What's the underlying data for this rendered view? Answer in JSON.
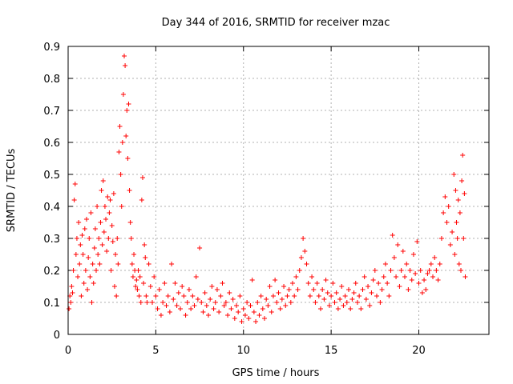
{
  "chart_data": {
    "type": "scatter",
    "title": "Day 344 of 2016, SRMTID for receiver mzac",
    "xlabel": "GPS time / hours",
    "ylabel": "SRMTID / TECUs",
    "xlim": [
      0,
      24
    ],
    "ylim": [
      0,
      0.9
    ],
    "xticks": [
      0,
      5,
      10,
      15,
      20
    ],
    "xtick_labels": [
      "0",
      "5",
      "10",
      "15",
      "20"
    ],
    "yticks": [
      0,
      0.1,
      0.2,
      0.3,
      0.4,
      0.5,
      0.6,
      0.7,
      0.8,
      0.9
    ],
    "ytick_labels": [
      "0",
      "0.1",
      "0.2",
      "0.3",
      "0.4",
      "0.5",
      "0.6",
      "0.7",
      "0.8",
      "0.9"
    ],
    "grid": true,
    "marker": "+",
    "color": "#ff0000",
    "series": [
      {
        "name": "SRMTID",
        "points": [
          [
            0.05,
            0.08
          ],
          [
            0.1,
            0.12
          ],
          [
            0.15,
            0.1
          ],
          [
            0.2,
            0.15
          ],
          [
            0.25,
            0.13
          ],
          [
            0.3,
            0.2
          ],
          [
            0.35,
            0.42
          ],
          [
            0.4,
            0.47
          ],
          [
            0.45,
            0.25
          ],
          [
            0.5,
            0.3
          ],
          [
            0.55,
            0.18
          ],
          [
            0.6,
            0.35
          ],
          [
            0.65,
            0.22
          ],
          [
            0.7,
            0.28
          ],
          [
            0.75,
            0.12
          ],
          [
            0.8,
            0.31
          ],
          [
            0.85,
            0.25
          ],
          [
            0.9,
            0.16
          ],
          [
            0.95,
            0.33
          ],
          [
            1.0,
            0.2
          ],
          [
            1.05,
            0.36
          ],
          [
            1.1,
            0.14
          ],
          [
            1.15,
            0.24
          ],
          [
            1.2,
            0.3
          ],
          [
            1.25,
            0.18
          ],
          [
            1.3,
            0.38
          ],
          [
            1.35,
            0.1
          ],
          [
            1.4,
            0.22
          ],
          [
            1.45,
            0.16
          ],
          [
            1.5,
            0.27
          ],
          [
            1.55,
            0.33
          ],
          [
            1.6,
            0.2
          ],
          [
            1.65,
            0.4
          ],
          [
            1.7,
            0.25
          ],
          [
            1.75,
            0.3
          ],
          [
            1.8,
            0.22
          ],
          [
            1.85,
            0.35
          ],
          [
            1.9,
            0.45
          ],
          [
            1.95,
            0.28
          ],
          [
            2.0,
            0.48
          ],
          [
            2.05,
            0.32
          ],
          [
            2.1,
            0.4
          ],
          [
            2.15,
            0.36
          ],
          [
            2.2,
            0.26
          ],
          [
            2.25,
            0.43
          ],
          [
            2.3,
            0.3
          ],
          [
            2.35,
            0.38
          ],
          [
            2.4,
            0.42
          ],
          [
            2.45,
            0.2
          ],
          [
            2.5,
            0.34
          ],
          [
            2.55,
            0.29
          ],
          [
            2.6,
            0.44
          ],
          [
            2.65,
            0.15
          ],
          [
            2.7,
            0.25
          ],
          [
            2.75,
            0.12
          ],
          [
            2.8,
            0.3
          ],
          [
            2.85,
            0.22
          ],
          [
            2.9,
            0.57
          ],
          [
            2.95,
            0.65
          ],
          [
            3.0,
            0.5
          ],
          [
            3.05,
            0.4
          ],
          [
            3.1,
            0.6
          ],
          [
            3.15,
            0.75
          ],
          [
            3.2,
            0.87
          ],
          [
            3.25,
            0.84
          ],
          [
            3.3,
            0.62
          ],
          [
            3.35,
            0.7
          ],
          [
            3.4,
            0.55
          ],
          [
            3.45,
            0.72
          ],
          [
            3.5,
            0.45
          ],
          [
            3.55,
            0.35
          ],
          [
            3.6,
            0.3
          ],
          [
            3.65,
            0.22
          ],
          [
            3.7,
            0.18
          ],
          [
            3.75,
            0.25
          ],
          [
            3.8,
            0.2
          ],
          [
            3.85,
            0.15
          ],
          [
            3.9,
            0.17
          ],
          [
            3.95,
            0.14
          ],
          [
            4.0,
            0.2
          ],
          [
            4.05,
            0.12
          ],
          [
            4.1,
            0.18
          ],
          [
            4.15,
            0.1
          ],
          [
            4.2,
            0.42
          ],
          [
            4.25,
            0.49
          ],
          [
            4.3,
            0.16
          ],
          [
            4.35,
            0.28
          ],
          [
            4.4,
            0.24
          ],
          [
            4.45,
            0.12
          ],
          [
            4.5,
            0.1
          ],
          [
            4.6,
            0.22
          ],
          [
            4.7,
            0.15
          ],
          [
            4.8,
            0.1
          ],
          [
            4.9,
            0.18
          ],
          [
            5.0,
            0.12
          ],
          [
            5.1,
            0.08
          ],
          [
            5.2,
            0.14
          ],
          [
            5.3,
            0.06
          ],
          [
            5.4,
            0.1
          ],
          [
            5.5,
            0.16
          ],
          [
            5.6,
            0.09
          ],
          [
            5.7,
            0.12
          ],
          [
            5.8,
            0.07
          ],
          [
            5.9,
            0.22
          ],
          [
            6.0,
            0.11
          ],
          [
            6.1,
            0.16
          ],
          [
            6.2,
            0.09
          ],
          [
            6.3,
            0.13
          ],
          [
            6.4,
            0.08
          ],
          [
            6.5,
            0.15
          ],
          [
            6.6,
            0.12
          ],
          [
            6.7,
            0.06
          ],
          [
            6.8,
            0.1
          ],
          [
            6.9,
            0.14
          ],
          [
            7.0,
            0.08
          ],
          [
            7.1,
            0.12
          ],
          [
            7.2,
            0.09
          ],
          [
            7.3,
            0.18
          ],
          [
            7.4,
            0.11
          ],
          [
            7.5,
            0.27
          ],
          [
            7.6,
            0.1
          ],
          [
            7.7,
            0.07
          ],
          [
            7.8,
            0.13
          ],
          [
            7.9,
            0.09
          ],
          [
            8.0,
            0.06
          ],
          [
            8.1,
            0.11
          ],
          [
            8.2,
            0.15
          ],
          [
            8.3,
            0.08
          ],
          [
            8.4,
            0.1
          ],
          [
            8.5,
            0.14
          ],
          [
            8.6,
            0.07
          ],
          [
            8.7,
            0.12
          ],
          [
            8.8,
            0.16
          ],
          [
            8.9,
            0.09
          ],
          [
            9.0,
            0.1
          ],
          [
            9.1,
            0.06
          ],
          [
            9.2,
            0.13
          ],
          [
            9.3,
            0.08
          ],
          [
            9.4,
            0.11
          ],
          [
            9.5,
            0.05
          ],
          [
            9.6,
            0.09
          ],
          [
            9.7,
            0.07
          ],
          [
            9.8,
            0.12
          ],
          [
            9.9,
            0.04
          ],
          [
            10.0,
            0.08
          ],
          [
            10.1,
            0.06
          ],
          [
            10.2,
            0.1
          ],
          [
            10.3,
            0.05
          ],
          [
            10.4,
            0.09
          ],
          [
            10.5,
            0.17
          ],
          [
            10.6,
            0.07
          ],
          [
            10.7,
            0.04
          ],
          [
            10.8,
            0.1
          ],
          [
            10.9,
            0.06
          ],
          [
            11.0,
            0.12
          ],
          [
            11.1,
            0.08
          ],
          [
            11.2,
            0.05
          ],
          [
            11.3,
            0.11
          ],
          [
            11.4,
            0.09
          ],
          [
            11.5,
            0.15
          ],
          [
            11.6,
            0.07
          ],
          [
            11.7,
            0.12
          ],
          [
            11.8,
            0.17
          ],
          [
            11.9,
            0.1
          ],
          [
            12.0,
            0.13
          ],
          [
            12.1,
            0.08
          ],
          [
            12.2,
            0.11
          ],
          [
            12.3,
            0.15
          ],
          [
            12.4,
            0.09
          ],
          [
            12.5,
            0.12
          ],
          [
            12.6,
            0.14
          ],
          [
            12.7,
            0.1
          ],
          [
            12.8,
            0.16
          ],
          [
            12.9,
            0.12
          ],
          [
            13.0,
            0.18
          ],
          [
            13.1,
            0.14
          ],
          [
            13.2,
            0.2
          ],
          [
            13.3,
            0.24
          ],
          [
            13.4,
            0.3
          ],
          [
            13.5,
            0.26
          ],
          [
            13.6,
            0.22
          ],
          [
            13.7,
            0.16
          ],
          [
            13.8,
            0.12
          ],
          [
            13.9,
            0.18
          ],
          [
            14.0,
            0.14
          ],
          [
            14.1,
            0.1
          ],
          [
            14.2,
            0.16
          ],
          [
            14.3,
            0.12
          ],
          [
            14.4,
            0.08
          ],
          [
            14.5,
            0.14
          ],
          [
            14.6,
            0.11
          ],
          [
            14.7,
            0.17
          ],
          [
            14.8,
            0.13
          ],
          [
            14.9,
            0.09
          ],
          [
            15.0,
            0.12
          ],
          [
            15.1,
            0.16
          ],
          [
            15.2,
            0.1
          ],
          [
            15.3,
            0.13
          ],
          [
            15.4,
            0.08
          ],
          [
            15.5,
            0.11
          ],
          [
            15.6,
            0.15
          ],
          [
            15.7,
            0.09
          ],
          [
            15.8,
            0.12
          ],
          [
            15.9,
            0.1
          ],
          [
            16.0,
            0.14
          ],
          [
            16.1,
            0.08
          ],
          [
            16.2,
            0.11
          ],
          [
            16.3,
            0.13
          ],
          [
            16.4,
            0.16
          ],
          [
            16.5,
            0.1
          ],
          [
            16.6,
            0.12
          ],
          [
            16.7,
            0.08
          ],
          [
            16.8,
            0.14
          ],
          [
            16.9,
            0.18
          ],
          [
            17.0,
            0.11
          ],
          [
            17.1,
            0.15
          ],
          [
            17.2,
            0.09
          ],
          [
            17.3,
            0.13
          ],
          [
            17.4,
            0.17
          ],
          [
            17.5,
            0.2
          ],
          [
            17.6,
            0.12
          ],
          [
            17.7,
            0.16
          ],
          [
            17.8,
            0.1
          ],
          [
            17.9,
            0.14
          ],
          [
            18.0,
            0.18
          ],
          [
            18.1,
            0.22
          ],
          [
            18.2,
            0.16
          ],
          [
            18.3,
            0.12
          ],
          [
            18.4,
            0.2
          ],
          [
            18.5,
            0.31
          ],
          [
            18.6,
            0.24
          ],
          [
            18.7,
            0.18
          ],
          [
            18.8,
            0.28
          ],
          [
            18.9,
            0.15
          ],
          [
            19.0,
            0.2
          ],
          [
            19.1,
            0.26
          ],
          [
            19.2,
            0.18
          ],
          [
            19.3,
            0.22
          ],
          [
            19.4,
            0.14
          ],
          [
            19.5,
            0.2
          ],
          [
            19.6,
            0.17
          ],
          [
            19.7,
            0.25
          ],
          [
            19.8,
            0.19
          ],
          [
            19.9,
            0.29
          ],
          [
            20.0,
            0.16
          ],
          [
            20.1,
            0.2
          ],
          [
            20.2,
            0.13
          ],
          [
            20.3,
            0.17
          ],
          [
            20.4,
            0.14
          ],
          [
            20.5,
            0.19
          ],
          [
            20.6,
            0.2
          ],
          [
            20.7,
            0.22
          ],
          [
            20.8,
            0.18
          ],
          [
            20.9,
            0.24
          ],
          [
            21.0,
            0.2
          ],
          [
            21.1,
            0.17
          ],
          [
            21.2,
            0.22
          ],
          [
            21.3,
            0.3
          ],
          [
            21.4,
            0.38
          ],
          [
            21.5,
            0.43
          ],
          [
            21.6,
            0.35
          ],
          [
            21.7,
            0.4
          ],
          [
            21.8,
            0.28
          ],
          [
            21.9,
            0.32
          ],
          [
            22.0,
            0.5
          ],
          [
            22.05,
            0.25
          ],
          [
            22.1,
            0.45
          ],
          [
            22.15,
            0.35
          ],
          [
            22.2,
            0.3
          ],
          [
            22.25,
            0.42
          ],
          [
            22.3,
            0.22
          ],
          [
            22.35,
            0.38
          ],
          [
            22.4,
            0.2
          ],
          [
            22.45,
            0.48
          ],
          [
            22.5,
            0.56
          ],
          [
            22.55,
            0.3
          ],
          [
            22.6,
            0.44
          ],
          [
            22.65,
            0.18
          ]
        ]
      }
    ]
  }
}
